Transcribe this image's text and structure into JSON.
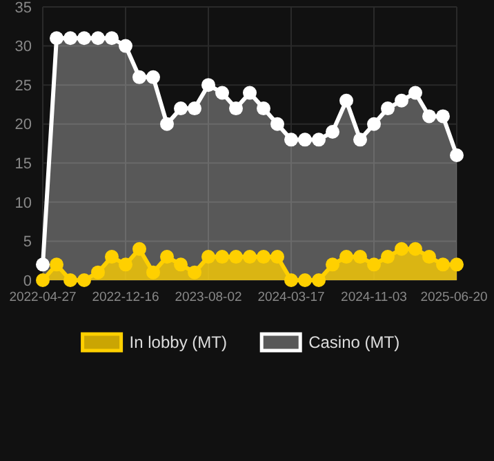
{
  "chart_data": {
    "type": "area",
    "categories": [
      "2022-04-27",
      null,
      null,
      null,
      null,
      null,
      "2022-12-16",
      null,
      null,
      null,
      null,
      null,
      "2023-08-02",
      null,
      null,
      null,
      null,
      null,
      "2024-03-17",
      null,
      null,
      null,
      null,
      null,
      "2024-11-03",
      null,
      null,
      null,
      null,
      null,
      "2025-06-20"
    ],
    "series": [
      {
        "name": "In lobby (MT)",
        "color": "#ffd000",
        "values": [
          0,
          2,
          0,
          0,
          1,
          3,
          2,
          4,
          1,
          3,
          2,
          1,
          3,
          3,
          3,
          3,
          3,
          3,
          0,
          0,
          0,
          2,
          3,
          3,
          2,
          3,
          4,
          4,
          3,
          2,
          2
        ]
      },
      {
        "name": "Casino (MT)",
        "color": "#ffffff",
        "values": [
          2,
          31,
          31,
          31,
          31,
          31,
          30,
          26,
          26,
          20,
          22,
          22,
          25,
          24,
          22,
          24,
          22,
          20,
          18,
          18,
          18,
          19,
          23,
          18,
          20,
          22,
          23,
          24,
          21,
          21,
          16
        ]
      }
    ],
    "ylim": [
      0,
      35
    ],
    "yticks": [
      0,
      5,
      10,
      15,
      20,
      25,
      30,
      35
    ],
    "grid": true,
    "legend": "bottom",
    "marker": "circle"
  }
}
